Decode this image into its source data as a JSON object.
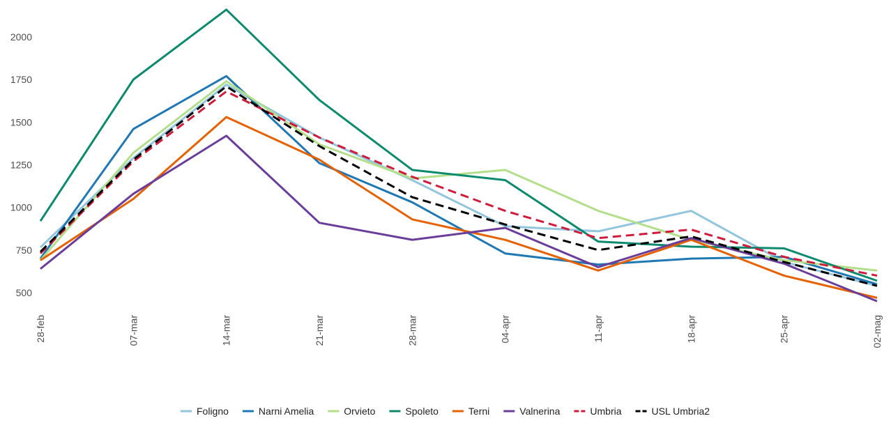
{
  "chart_data": {
    "type": "line",
    "categories": [
      "28-feb",
      "07-mar",
      "14-mar",
      "21-mar",
      "28-mar",
      "04-apr",
      "11-apr",
      "18-apr",
      "25-apr",
      "02-mag"
    ],
    "series": [
      {
        "name": "Foligno",
        "color": "#92c5de",
        "dashed": false,
        "values": [
          766,
          1290,
          1720,
          1410,
          1160,
          890,
          860,
          980,
          680,
          540
        ]
      },
      {
        "name": "Narni Amelia",
        "color": "#1f78b4",
        "dashed": false,
        "values": [
          700,
          1460,
          1770,
          1260,
          1030,
          730,
          665,
          700,
          710,
          550
        ]
      },
      {
        "name": "Orvieto",
        "color": "#b2df8a",
        "dashed": false,
        "values": [
          690,
          1320,
          1740,
          1370,
          1170,
          1220,
          980,
          810,
          690,
          630
        ]
      },
      {
        "name": "Spoleto",
        "color": "#0b8a6e",
        "dashed": false,
        "values": [
          920,
          1750,
          2160,
          1630,
          1220,
          1160,
          800,
          770,
          760,
          570
        ]
      },
      {
        "name": "Terni",
        "color": "#e66101",
        "dashed": false,
        "values": [
          690,
          1050,
          1530,
          1280,
          930,
          810,
          630,
          810,
          600,
          470
        ]
      },
      {
        "name": "Valnerina",
        "color": "#6a3d9a",
        "dashed": false,
        "values": [
          640,
          1080,
          1420,
          910,
          810,
          880,
          650,
          820,
          670,
          450
        ]
      },
      {
        "name": "Umbria",
        "color": "#d01c3c",
        "dashed": true,
        "values": [
          730,
          1270,
          1680,
          1410,
          1180,
          980,
          820,
          870,
          710,
          600
        ]
      },
      {
        "name": "USL Umbria2",
        "color": "#000000",
        "dashed": true,
        "values": [
          740,
          1280,
          1710,
          1360,
          1060,
          900,
          750,
          830,
          680,
          540
        ]
      }
    ],
    "ylim": [
      440,
      2200
    ],
    "yticks": [
      500,
      750,
      1000,
      1250,
      1500,
      1750,
      2000
    ],
    "grid": false,
    "legend": "bottom"
  }
}
